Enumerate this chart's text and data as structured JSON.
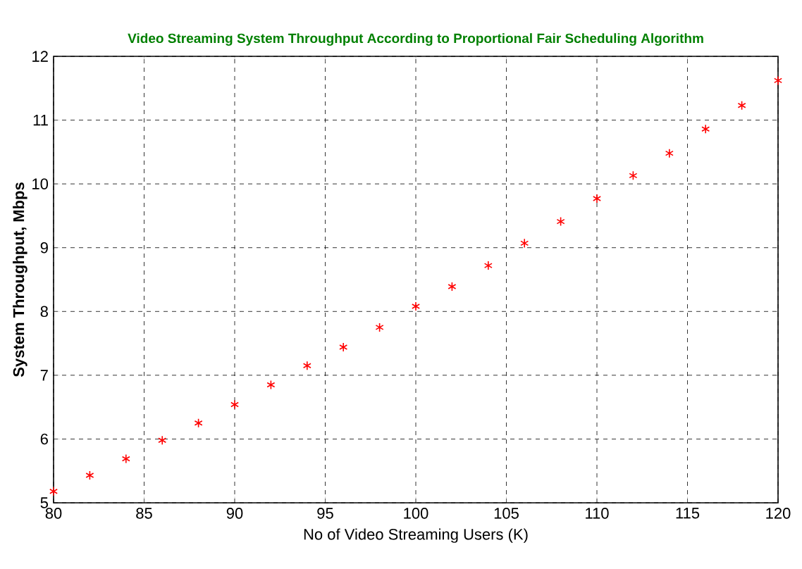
{
  "chart_data": {
    "type": "scatter",
    "title": "Video Streaming System Throughput According to Proportional Fair Scheduling Algorithm",
    "xlabel": "No of Video Streaming Users (K)",
    "ylabel": "System Throughput, Mbps",
    "x": [
      80,
      82,
      84,
      86,
      88,
      90,
      92,
      94,
      96,
      98,
      100,
      102,
      104,
      106,
      108,
      110,
      112,
      114,
      116,
      118,
      120
    ],
    "series": [
      {
        "color": "#ff0000",
        "values": [
          5.18,
          5.43,
          5.69,
          5.98,
          6.25,
          6.54,
          6.85,
          7.15,
          7.44,
          7.75,
          8.08,
          8.39,
          8.72,
          9.07,
          9.41,
          9.77,
          10.13,
          10.48,
          10.86,
          11.23,
          11.62
        ]
      }
    ],
    "xlim": [
      80,
      120
    ],
    "ylim": [
      5,
      12
    ],
    "xticks": [
      80,
      85,
      90,
      95,
      100,
      105,
      110,
      115,
      120
    ],
    "yticks": [
      5,
      6,
      7,
      8,
      9,
      10,
      11,
      12
    ],
    "grid": true,
    "marker": "cross"
  }
}
